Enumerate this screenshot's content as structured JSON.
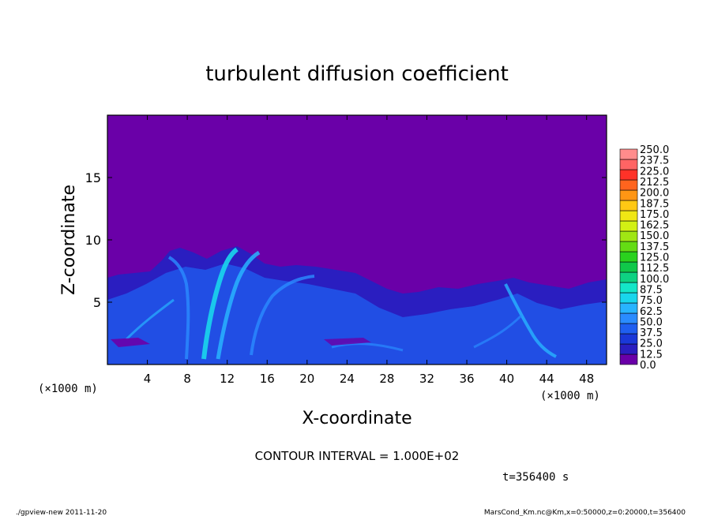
{
  "chart_data": {
    "type": "heatmap",
    "title": "turbulent diffusion coefficient",
    "xlabel": "X-coordinate",
    "ylabel": "Z-coordinate",
    "x_unit_left": "(×1000 m)",
    "x_unit_right": "(×1000 m)",
    "xlim": [
      0,
      50
    ],
    "ylim": [
      0,
      20
    ],
    "x_ticks": [
      4,
      8,
      12,
      16,
      20,
      24,
      28,
      32,
      36,
      40,
      44,
      48
    ],
    "y_ticks": [
      5,
      10,
      15
    ],
    "colorbar": {
      "levels": [
        "0.0",
        "12.5",
        "25.0",
        "37.5",
        "50.0",
        "62.5",
        "75.0",
        "87.5",
        "100.0",
        "112.5",
        "125.0",
        "137.5",
        "150.0",
        "162.5",
        "175.0",
        "187.5",
        "200.0",
        "212.5",
        "225.0",
        "237.5",
        "250.0"
      ],
      "colors": [
        "#6a00a8",
        "#2a1ec0",
        "#1a38d8",
        "#1f5ff0",
        "#2a8cff",
        "#28b4ff",
        "#19d6ec",
        "#14e6c8",
        "#0ed282",
        "#10c84a",
        "#2ad21e",
        "#64dc14",
        "#a0e614",
        "#d2f014",
        "#f0e614",
        "#ffc814",
        "#ff9614",
        "#ff641e",
        "#ff3228",
        "#ff6464",
        "#ff8c8c"
      ]
    },
    "background_color": "#6a00a8",
    "contour_interval_label": "CONTOUR INTERVAL = 1.000E+02",
    "time_label": "t=356400 s"
  },
  "footer": {
    "left": "./gpview-new   2011-11-20",
    "right": "MarsCond_Km.nc@Km,x=0:50000,z=0:20000,t=356400"
  }
}
